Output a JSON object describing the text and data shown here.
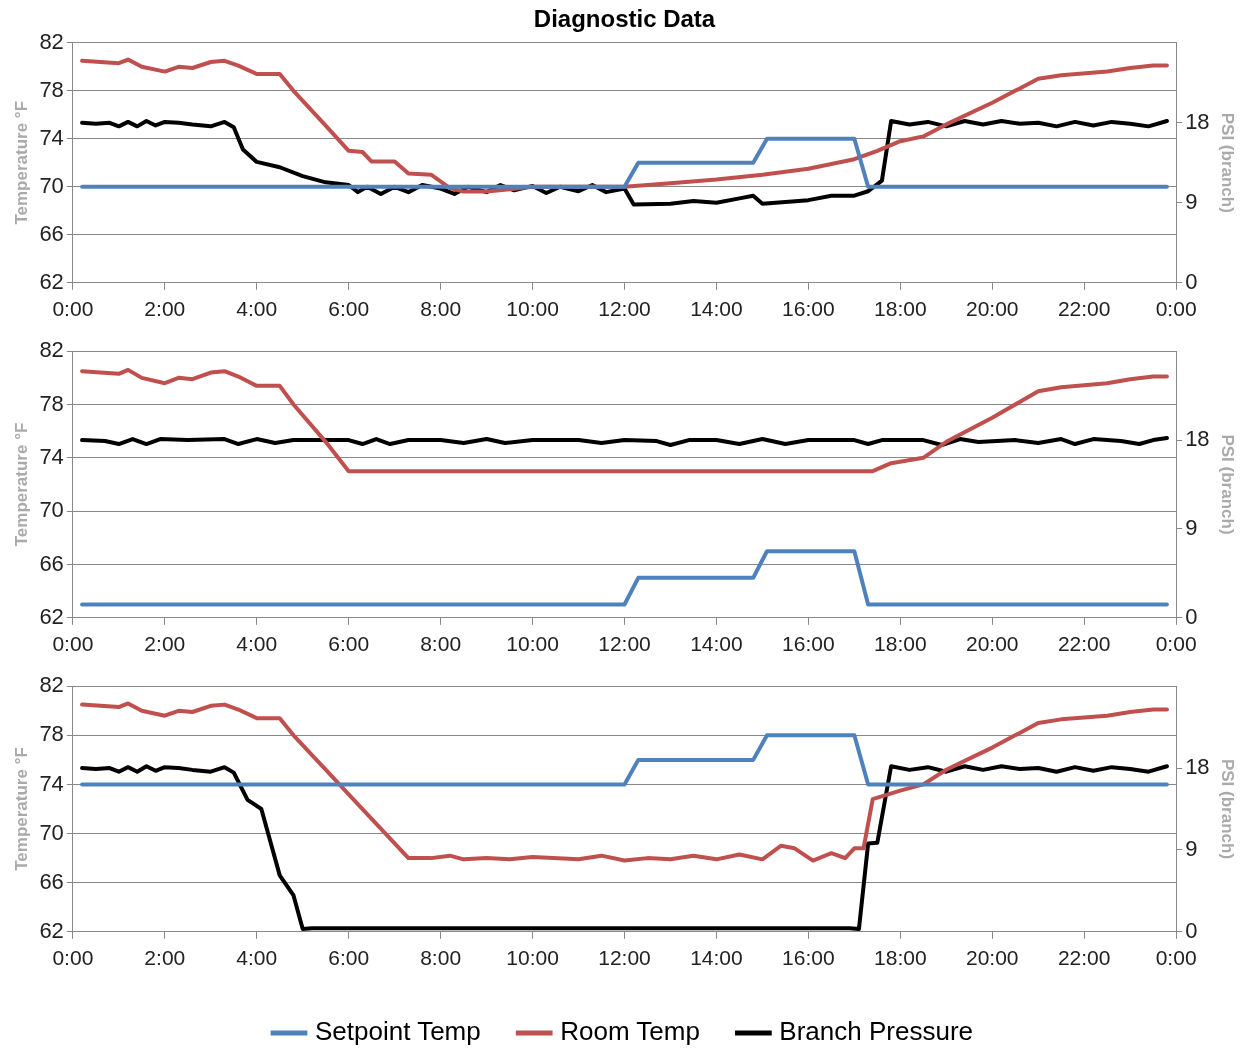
{
  "chart_data": [
    {
      "type": "line",
      "title": "Diagnostic Data",
      "ylabel": "Temperature °F",
      "y2label": "PSI (branch)",
      "xlim": [
        0,
        24
      ],
      "xticks": [
        {
          "value": 0,
          "label": "0:00"
        },
        {
          "value": 2,
          "label": "2:00"
        },
        {
          "value": 4,
          "label": "4:00"
        },
        {
          "value": 6,
          "label": "6:00"
        },
        {
          "value": 8,
          "label": "8:00"
        },
        {
          "value": 10,
          "label": "10:00"
        },
        {
          "value": 12,
          "label": "12:00"
        },
        {
          "value": 14,
          "label": "14:00"
        },
        {
          "value": 16,
          "label": "16:00"
        },
        {
          "value": 18,
          "label": "18:00"
        },
        {
          "value": 20,
          "label": "20:00"
        },
        {
          "value": 22,
          "label": "22:00"
        },
        {
          "value": 24,
          "label": "0:00"
        }
      ],
      "ylim": [
        62,
        82
      ],
      "yticks": [
        62,
        66,
        70,
        74,
        78,
        82
      ],
      "y2lim": [
        0,
        27
      ],
      "y2ticks": [
        0,
        9,
        18
      ],
      "grid": "y",
      "marker": "none",
      "line_style": "solid",
      "series": [
        {
          "color": "#4f81bd",
          "x": [
            0.2,
            12.0,
            12.3,
            14.8,
            15.1,
            17.0,
            17.3,
            23.8
          ],
          "values": [
            70,
            70,
            72,
            72,
            74,
            74,
            70,
            70
          ]
        },
        {
          "color": "#c0504d",
          "x": [
            0.2,
            0.6,
            1.0,
            1.2,
            1.5,
            2.0,
            2.3,
            2.6,
            3.0,
            3.3,
            3.6,
            4.0,
            4.5,
            4.8,
            5.5,
            6.0,
            6.3,
            6.5,
            7.0,
            7.3,
            7.8,
            8.2,
            8.5,
            9.0,
            10.0,
            11.0,
            12.0,
            13.0,
            14.0,
            15.0,
            16.0,
            17.0,
            17.5,
            18.0,
            18.5,
            19.0,
            20.0,
            21.0,
            21.5,
            22.5,
            23.0,
            23.5,
            23.8
          ],
          "values": [
            80.5,
            80.4,
            80.3,
            80.6,
            80.0,
            79.6,
            80.0,
            79.9,
            80.4,
            80.5,
            80.1,
            79.4,
            79.4,
            78.0,
            75.1,
            73.0,
            72.9,
            72.1,
            72.1,
            71.1,
            71.0,
            69.9,
            69.6,
            69.6,
            70.0,
            70.0,
            70.0,
            70.3,
            70.6,
            71.0,
            71.5,
            72.3,
            73.0,
            73.8,
            74.2,
            75.2,
            77.0,
            79.0,
            79.3,
            79.6,
            79.9,
            80.1,
            80.1
          ]
        },
        {
          "color": "#000000",
          "axis": "y2",
          "x": [
            0.2,
            0.5,
            0.8,
            1.0,
            1.2,
            1.4,
            1.6,
            1.8,
            2.0,
            2.3,
            2.6,
            3.0,
            3.3,
            3.5,
            3.7,
            4.0,
            4.5,
            5.0,
            5.5,
            6.0,
            6.2,
            6.4,
            6.7,
            7.0,
            7.3,
            7.6,
            8.0,
            8.3,
            8.6,
            9.0,
            9.3,
            9.6,
            10.0,
            10.3,
            10.6,
            11.0,
            11.3,
            11.6,
            12.0,
            12.2,
            13.0,
            13.5,
            14.0,
            14.5,
            14.8,
            15.0,
            15.5,
            16.0,
            16.5,
            17.0,
            17.3,
            17.6,
            17.8,
            18.2,
            18.6,
            19.0,
            19.4,
            19.8,
            20.2,
            20.6,
            21.0,
            21.4,
            21.8,
            22.2,
            22.6,
            23.0,
            23.4,
            23.8
          ],
          "values": [
            18,
            17.9,
            18,
            17.6,
            18.1,
            17.6,
            18.2,
            17.7,
            18.1,
            18,
            17.8,
            17.6,
            18.1,
            17.5,
            15,
            13.6,
            13,
            12,
            11.3,
            11,
            10.2,
            10.8,
            10,
            10.8,
            10.2,
            11,
            10.6,
            10,
            10.8,
            10.2,
            11,
            10.4,
            10.9,
            10.1,
            10.8,
            10.3,
            11,
            10.2,
            10.6,
            8.8,
            8.9,
            9.2,
            9,
            9.5,
            9.8,
            8.9,
            9.1,
            9.3,
            9.8,
            9.8,
            10.3,
            11.5,
            18.2,
            17.8,
            18.1,
            17.6,
            18.2,
            17.8,
            18.2,
            17.9,
            18,
            17.6,
            18.1,
            17.7,
            18.1,
            17.9,
            17.6,
            18.2
          ]
        }
      ]
    },
    {
      "type": "line",
      "ylabel": "Temperature °F",
      "y2label": "PSI (branch)",
      "xlim": [
        0,
        24
      ],
      "xticks": [
        {
          "value": 0,
          "label": "0:00"
        },
        {
          "value": 2,
          "label": "2:00"
        },
        {
          "value": 4,
          "label": "4:00"
        },
        {
          "value": 6,
          "label": "6:00"
        },
        {
          "value": 8,
          "label": "8:00"
        },
        {
          "value": 10,
          "label": "10:00"
        },
        {
          "value": 12,
          "label": "12:00"
        },
        {
          "value": 14,
          "label": "14:00"
        },
        {
          "value": 16,
          "label": "16:00"
        },
        {
          "value": 18,
          "label": "18:00"
        },
        {
          "value": 20,
          "label": "20:00"
        },
        {
          "value": 22,
          "label": "22:00"
        },
        {
          "value": 24,
          "label": "0:00"
        }
      ],
      "ylim": [
        62,
        82
      ],
      "yticks": [
        62,
        66,
        70,
        74,
        78,
        82
      ],
      "y2lim": [
        0,
        27
      ],
      "y2ticks": [
        0,
        9,
        18
      ],
      "grid": "y",
      "marker": "none",
      "line_style": "solid",
      "series": [
        {
          "color": "#4f81bd",
          "x": [
            0.2,
            12.0,
            12.3,
            14.8,
            15.1,
            17.0,
            17.3,
            23.8
          ],
          "values": [
            63,
            63,
            65,
            65,
            67,
            67,
            63,
            63
          ]
        },
        {
          "color": "#c0504d",
          "x": [
            0.2,
            0.6,
            1.0,
            1.2,
            1.5,
            2.0,
            2.3,
            2.6,
            3.0,
            3.3,
            3.6,
            4.0,
            4.5,
            4.8,
            5.5,
            6.0,
            17.4,
            17.8,
            18.5,
            19.0,
            20.0,
            21.0,
            21.5,
            22.5,
            23.0,
            23.5,
            23.8
          ],
          "values": [
            80.5,
            80.4,
            80.3,
            80.6,
            80.0,
            79.6,
            80.0,
            79.9,
            80.4,
            80.5,
            80.1,
            79.4,
            79.4,
            78.0,
            75.2,
            73.0,
            73.0,
            73.6,
            74.0,
            75.2,
            77.0,
            79.0,
            79.3,
            79.6,
            79.9,
            80.1,
            80.1
          ]
        },
        {
          "color": "#000000",
          "axis": "y2",
          "x": [
            0.2,
            0.7,
            1.0,
            1.3,
            1.6,
            1.9,
            2.5,
            3.3,
            3.6,
            4.0,
            4.4,
            4.8,
            6.0,
            6.3,
            6.6,
            6.9,
            7.3,
            8.0,
            8.5,
            9.0,
            9.4,
            10.0,
            11.0,
            11.5,
            12.0,
            12.7,
            13.0,
            13.4,
            14.0,
            14.5,
            15.0,
            15.5,
            16.0,
            17.0,
            17.3,
            17.6,
            18.5,
            18.9,
            19.3,
            19.7,
            20.5,
            21.0,
            21.5,
            21.8,
            22.2,
            22.8,
            23.2,
            23.5,
            23.8
          ],
          "values": [
            18,
            17.9,
            17.6,
            18.1,
            17.6,
            18.1,
            18,
            18.1,
            17.6,
            18.1,
            17.7,
            18,
            18,
            17.6,
            18.1,
            17.6,
            18,
            18,
            17.7,
            18.1,
            17.7,
            18,
            18,
            17.7,
            18,
            17.9,
            17.5,
            18,
            18,
            17.6,
            18.1,
            17.6,
            18,
            18,
            17.6,
            18,
            18,
            17.5,
            18.1,
            17.8,
            18,
            17.7,
            18.1,
            17.6,
            18.1,
            17.9,
            17.6,
            18,
            18.2
          ]
        }
      ]
    },
    {
      "type": "line",
      "ylabel": "Temperature °F",
      "y2label": "PSI (branch)",
      "xlim": [
        0,
        24
      ],
      "xticks": [
        {
          "value": 0,
          "label": "0:00"
        },
        {
          "value": 2,
          "label": "2:00"
        },
        {
          "value": 4,
          "label": "4:00"
        },
        {
          "value": 6,
          "label": "6:00"
        },
        {
          "value": 8,
          "label": "8:00"
        },
        {
          "value": 10,
          "label": "10:00"
        },
        {
          "value": 12,
          "label": "12:00"
        },
        {
          "value": 14,
          "label": "14:00"
        },
        {
          "value": 16,
          "label": "16:00"
        },
        {
          "value": 18,
          "label": "18:00"
        },
        {
          "value": 20,
          "label": "20:00"
        },
        {
          "value": 22,
          "label": "22:00"
        },
        {
          "value": 24,
          "label": "0:00"
        }
      ],
      "ylim": [
        62,
        82
      ],
      "yticks": [
        62,
        66,
        70,
        74,
        78,
        82
      ],
      "y2lim": [
        0,
        27
      ],
      "y2ticks": [
        0,
        9,
        18
      ],
      "grid": "y",
      "marker": "none",
      "line_style": "solid",
      "legend": "bottom",
      "series": [
        {
          "name": "Setpoint Temp",
          "color": "#4f81bd",
          "x": [
            0.2,
            12.0,
            12.3,
            14.8,
            15.1,
            17.0,
            17.3,
            23.8
          ],
          "values": [
            74,
            74,
            76,
            76,
            78,
            78,
            74,
            74
          ]
        },
        {
          "name": "Room Temp",
          "color": "#c0504d",
          "x": [
            0.2,
            0.6,
            1.0,
            1.2,
            1.5,
            2.0,
            2.3,
            2.6,
            3.0,
            3.3,
            3.6,
            4.0,
            4.5,
            4.8,
            5.5,
            6.0,
            7.3,
            7.8,
            8.2,
            8.5,
            9.0,
            9.5,
            10.0,
            11.0,
            11.5,
            12.0,
            12.5,
            13.0,
            13.5,
            14.0,
            14.5,
            15.0,
            15.4,
            15.7,
            16.1,
            16.5,
            16.8,
            17.0,
            17.2,
            17.4,
            18.0,
            18.5,
            19.0,
            20.0,
            21.0,
            21.5,
            22.5,
            23.0,
            23.5,
            23.8
          ],
          "values": [
            80.5,
            80.4,
            80.3,
            80.6,
            80.0,
            79.6,
            80.0,
            79.9,
            80.4,
            80.5,
            80.1,
            79.4,
            79.4,
            78.0,
            75.2,
            73.2,
            68.0,
            68.0,
            68.2,
            67.9,
            68.0,
            67.9,
            68.1,
            67.9,
            68.2,
            67.8,
            68.0,
            67.9,
            68.2,
            67.9,
            68.3,
            67.9,
            69.0,
            68.8,
            67.8,
            68.4,
            68.0,
            68.8,
            68.8,
            72.8,
            73.5,
            74.0,
            75.2,
            77.0,
            79.0,
            79.3,
            79.6,
            79.9,
            80.1,
            80.1
          ]
        },
        {
          "name": "Branch Pressure",
          "color": "#000000",
          "axis": "y2",
          "x": [
            0.2,
            0.5,
            0.8,
            1.0,
            1.2,
            1.4,
            1.6,
            1.8,
            2.0,
            2.3,
            2.6,
            3.0,
            3.3,
            3.5,
            3.8,
            4.1,
            4.5,
            4.8,
            5.0,
            5.2,
            16.9,
            17.1,
            17.3,
            17.5,
            17.8,
            18.2,
            18.6,
            19.0,
            19.4,
            19.8,
            20.2,
            20.6,
            21.0,
            21.4,
            21.8,
            22.2,
            22.6,
            23.0,
            23.4,
            23.8
          ],
          "values": [
            18,
            17.9,
            18,
            17.6,
            18.1,
            17.6,
            18.2,
            17.7,
            18.1,
            18,
            17.8,
            17.6,
            18.1,
            17.5,
            14.5,
            13.5,
            6.2,
            4.0,
            0.3,
            0.4,
            0.4,
            0.3,
            9.7,
            9.8,
            18.2,
            17.8,
            18.1,
            17.6,
            18.2,
            17.8,
            18.2,
            17.9,
            18,
            17.6,
            18.1,
            17.7,
            18.1,
            17.9,
            17.6,
            18.2
          ]
        }
      ]
    }
  ]
}
